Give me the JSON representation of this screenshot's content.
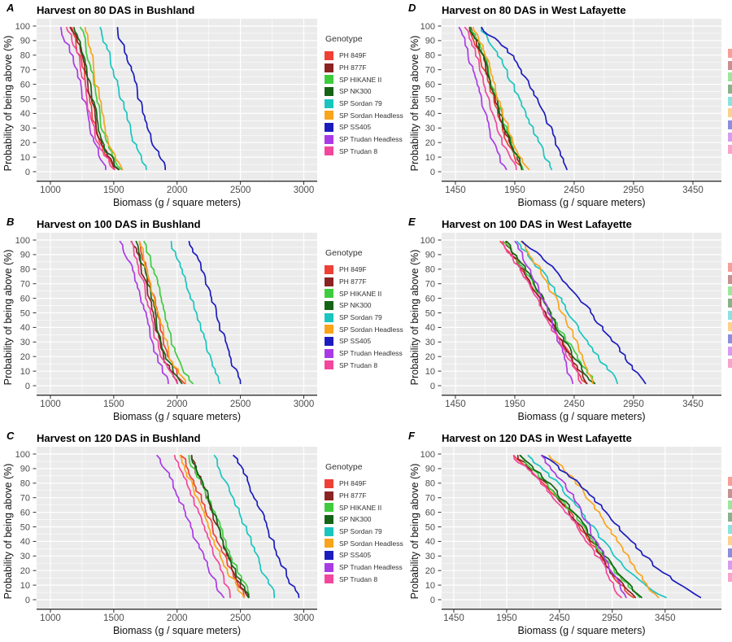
{
  "legend": {
    "title": "Genotype"
  },
  "genotypes": [
    {
      "name": "PH 849F",
      "color": "#EE4035"
    },
    {
      "name": "PH 877F",
      "color": "#8B2323"
    },
    {
      "name": "SP HIKANE II",
      "color": "#3ECC3E"
    },
    {
      "name": "SP NK300",
      "color": "#156315"
    },
    {
      "name": "SP Sordan 79",
      "color": "#19C5BF"
    },
    {
      "name": "SP Sordan Headless",
      "color": "#F9A41B"
    },
    {
      "name": "SP SS405",
      "color": "#1C1CBE"
    },
    {
      "name": "SP Trudan Headless",
      "color": "#A93BE6"
    },
    {
      "name": "SP Trudan 8",
      "color": "#F2479C"
    }
  ],
  "axes": {
    "xlabel": "Biomass (g / square meters)",
    "ylabel": "Probability of being above (%)",
    "yticks": [
      0,
      10,
      20,
      30,
      40,
      50,
      60,
      70,
      80,
      90,
      100
    ],
    "ylim": [
      0,
      100
    ]
  },
  "chart_data": [
    {
      "id": "A",
      "type": "line",
      "column": "left",
      "title": "Harvest on 80 DAS in Bushland",
      "xlabel": "Biomass (g / square meters)",
      "ylabel": "Probability of being above (%)",
      "xticks": [
        1000,
        1500,
        2000,
        2500,
        3000
      ],
      "xlim": [
        891,
        3106
      ],
      "ylim": [
        0,
        100
      ],
      "prob_levels": [
        100,
        80,
        60,
        40,
        20,
        0
      ],
      "series": [
        {
          "name": "PH 849F",
          "x_at_prob": [
            1154,
            1230,
            1280,
            1325,
            1375,
            1535
          ]
        },
        {
          "name": "PH 877F",
          "x_at_prob": [
            1169,
            1245,
            1295,
            1340,
            1390,
            1542
          ]
        },
        {
          "name": "SP HIKANE II",
          "x_at_prob": [
            1244,
            1300,
            1345,
            1385,
            1435,
            1563
          ]
        },
        {
          "name": "SP NK300",
          "x_at_prob": [
            1180,
            1255,
            1305,
            1350,
            1400,
            1548
          ]
        },
        {
          "name": "SP Sordan 79",
          "x_at_prob": [
            1383,
            1460,
            1530,
            1590,
            1660,
            1766
          ]
        },
        {
          "name": "SP Sordan Headless",
          "x_at_prob": [
            1265,
            1320,
            1360,
            1400,
            1450,
            1584
          ]
        },
        {
          "name": "SP SS405",
          "x_at_prob": [
            1511,
            1600,
            1670,
            1730,
            1800,
            1921
          ]
        },
        {
          "name": "SP Trudan Headless",
          "x_at_prob": [
            1077,
            1160,
            1230,
            1290,
            1350,
            1437
          ]
        },
        {
          "name": "SP Trudan 8",
          "x_at_prob": [
            1141,
            1215,
            1265,
            1310,
            1360,
            1520
          ]
        }
      ]
    },
    {
      "id": "D",
      "type": "line",
      "column": "right",
      "title": "Harvest on 80 DAS in West Lafayette",
      "xlabel": "Biomass (g / square meters)",
      "ylabel": "Probability of being above (%)",
      "xticks": [
        1450,
        1950,
        2450,
        2950,
        3450
      ],
      "xlim": [
        1334,
        3690
      ],
      "ylim": [
        0,
        100
      ],
      "prob_levels": [
        100,
        80,
        60,
        40,
        20,
        0
      ],
      "series": [
        {
          "name": "PH 849F",
          "x_at_prob": [
            1550,
            1660,
            1730,
            1800,
            1885,
            2010
          ]
        },
        {
          "name": "PH 877F",
          "x_at_prob": [
            1560,
            1670,
            1740,
            1810,
            1895,
            2020
          ]
        },
        {
          "name": "SP HIKANE II",
          "x_at_prob": [
            1580,
            1690,
            1760,
            1830,
            1915,
            2045
          ]
        },
        {
          "name": "SP NK300",
          "x_at_prob": [
            1570,
            1680,
            1750,
            1820,
            1905,
            2030
          ]
        },
        {
          "name": "SP Sordan 79",
          "x_at_prob": [
            1645,
            1810,
            1930,
            2040,
            2150,
            2260
          ]
        },
        {
          "name": "SP Sordan Headless",
          "x_at_prob": [
            1590,
            1700,
            1775,
            1845,
            1930,
            2065
          ]
        },
        {
          "name": "SP SS405",
          "x_at_prob": [
            1655,
            1930,
            2070,
            2190,
            2300,
            2400
          ]
        },
        {
          "name": "SP Trudan Headless",
          "x_at_prob": [
            1485,
            1555,
            1625,
            1690,
            1770,
            1875
          ]
        },
        {
          "name": "SP Trudan 8",
          "x_at_prob": [
            1540,
            1620,
            1690,
            1755,
            1840,
            1975
          ]
        }
      ]
    },
    {
      "id": "B",
      "type": "line",
      "column": "left",
      "title": "Harvest on 100 DAS in Bushland",
      "xlabel": "Biomass (g / square meters)",
      "ylabel": "Probability of being above (%)",
      "xticks": [
        1000,
        1500,
        2000,
        2500,
        3000
      ],
      "xlim": [
        891,
        3106
      ],
      "ylim": [
        0,
        100
      ],
      "prob_levels": [
        100,
        80,
        60,
        40,
        20,
        0
      ],
      "series": [
        {
          "name": "PH 849F",
          "x_at_prob": [
            1683,
            1755,
            1810,
            1860,
            1925,
            2057
          ]
        },
        {
          "name": "PH 877F",
          "x_at_prob": [
            1651,
            1720,
            1775,
            1825,
            1890,
            2018
          ]
        },
        {
          "name": "SP HIKANE II",
          "x_at_prob": [
            1736,
            1810,
            1865,
            1920,
            1985,
            2125
          ]
        },
        {
          "name": "SP NK300",
          "x_at_prob": [
            1672,
            1740,
            1795,
            1845,
            1910,
            2040
          ]
        },
        {
          "name": "SP Sordan 79",
          "x_at_prob": [
            1944,
            2030,
            2110,
            2180,
            2250,
            2336
          ]
        },
        {
          "name": "SP Sordan Headless",
          "x_at_prob": [
            1693,
            1765,
            1820,
            1875,
            1945,
            2078
          ]
        },
        {
          "name": "SP SS405",
          "x_at_prob": [
            2100,
            2190,
            2270,
            2340,
            2415,
            2507
          ]
        },
        {
          "name": "SP Trudan Headless",
          "x_at_prob": [
            1544,
            1640,
            1710,
            1770,
            1840,
            1939
          ]
        },
        {
          "name": "SP Trudan 8",
          "x_at_prob": [
            1629,
            1700,
            1755,
            1805,
            1870,
            2003
          ]
        }
      ]
    },
    {
      "id": "E",
      "type": "line",
      "column": "right",
      "title": "Harvest on 100 DAS in West Lafayette",
      "xlabel": "Biomass (g / square meters)",
      "ylabel": "Probability of being above (%)",
      "xticks": [
        1450,
        1950,
        2450,
        2950,
        3450
      ],
      "xlim": [
        1334,
        3690
      ],
      "ylim": [
        0,
        100
      ],
      "prob_levels": [
        100,
        80,
        60,
        40,
        20,
        0
      ],
      "series": [
        {
          "name": "PH 849F",
          "x_at_prob": [
            1830,
            2010,
            2150,
            2280,
            2420,
            2560
          ]
        },
        {
          "name": "PH 877F",
          "x_at_prob": [
            1850,
            2010,
            2150,
            2280,
            2420,
            2570
          ]
        },
        {
          "name": "SP HIKANE II",
          "x_at_prob": [
            1855,
            2030,
            2180,
            2320,
            2470,
            2640
          ]
        },
        {
          "name": "SP NK300",
          "x_at_prob": [
            1870,
            2040,
            2180,
            2310,
            2440,
            2620
          ]
        },
        {
          "name": "SP Sordan 79",
          "x_at_prob": [
            1965,
            2160,
            2330,
            2490,
            2650,
            2835
          ]
        },
        {
          "name": "SP Sordan Headless",
          "x_at_prob": [
            2000,
            2160,
            2290,
            2410,
            2510,
            2605
          ]
        },
        {
          "name": "SP SS405",
          "x_at_prob": [
            2000,
            2280,
            2500,
            2690,
            2870,
            3050
          ]
        },
        {
          "name": "SP Trudan Headless",
          "x_at_prob": [
            1940,
            2070,
            2180,
            2280,
            2360,
            2430
          ]
        },
        {
          "name": "SP Trudan 8",
          "x_at_prob": [
            1840,
            1990,
            2130,
            2260,
            2390,
            2525
          ]
        }
      ]
    },
    {
      "id": "C",
      "type": "line",
      "column": "left",
      "title": "Harvest on 120 DAS in Bushland",
      "xlabel": "Biomass (g / square meters)",
      "ylabel": "Probability of being above (%)",
      "xticks": [
        1000,
        1500,
        2000,
        2500,
        3000
      ],
      "xlim": [
        891,
        3106
      ],
      "ylim": [
        0,
        100
      ],
      "prob_levels": [
        100,
        80,
        60,
        40,
        20,
        0
      ],
      "series": [
        {
          "name": "PH 849F",
          "x_at_prob": [
            2035,
            2140,
            2230,
            2320,
            2420,
            2549
          ]
        },
        {
          "name": "PH 877F",
          "x_at_prob": [
            2100,
            2190,
            2270,
            2350,
            2440,
            2560
          ]
        },
        {
          "name": "SP HIKANE II",
          "x_at_prob": [
            2078,
            2190,
            2290,
            2380,
            2470,
            2592
          ]
        },
        {
          "name": "SP NK300",
          "x_at_prob": [
            2110,
            2200,
            2285,
            2365,
            2455,
            2571
          ]
        },
        {
          "name": "SP Sordan 79",
          "x_at_prob": [
            2281,
            2390,
            2490,
            2580,
            2670,
            2783
          ]
        },
        {
          "name": "SP Sordan Headless",
          "x_at_prob": [
            2003,
            2110,
            2200,
            2290,
            2400,
            2539
          ]
        },
        {
          "name": "SP SS405",
          "x_at_prob": [
            2452,
            2560,
            2660,
            2750,
            2850,
            2965
          ]
        },
        {
          "name": "SP Trudan Headless",
          "x_at_prob": [
            1854,
            1960,
            2060,
            2150,
            2250,
            2367
          ]
        },
        {
          "name": "SP Trudan 8",
          "x_at_prob": [
            1971,
            2070,
            2160,
            2250,
            2340,
            2432
          ]
        }
      ]
    },
    {
      "id": "F",
      "type": "line",
      "column": "right",
      "title": "Harvest on 120 DAS in West Lafayette",
      "xlabel": "Biomass (g / square meters)",
      "ylabel": "Probability of being above (%)",
      "xticks": [
        1450,
        1950,
        2450,
        2950,
        3450
      ],
      "xlim": [
        1335,
        3983
      ],
      "ylim": [
        0,
        100
      ],
      "prob_levels": [
        100,
        80,
        60,
        40,
        20,
        0
      ],
      "series": [
        {
          "name": "PH 849F",
          "x_at_prob": [
            2015,
            2300,
            2540,
            2740,
            2920,
            3160
          ]
        },
        {
          "name": "PH 877F",
          "x_at_prob": [
            2030,
            2310,
            2550,
            2750,
            2930,
            3185
          ]
        },
        {
          "name": "SP HIKANE II",
          "x_at_prob": [
            2055,
            2330,
            2570,
            2780,
            2970,
            3225
          ]
        },
        {
          "name": "SP NK300",
          "x_at_prob": [
            2080,
            2350,
            2580,
            2790,
            2980,
            3235
          ]
        },
        {
          "name": "SP Sordan 79",
          "x_at_prob": [
            2130,
            2430,
            2660,
            2860,
            3080,
            3470
          ]
        },
        {
          "name": "SP Sordan Headless",
          "x_at_prob": [
            2350,
            2620,
            2820,
            3000,
            3180,
            3390
          ]
        },
        {
          "name": "SP SS405",
          "x_at_prob": [
            2270,
            2640,
            2900,
            3130,
            3400,
            3820
          ]
        },
        {
          "name": "SP Trudan Headless",
          "x_at_prob": [
            2260,
            2500,
            2660,
            2800,
            2940,
            3095
          ]
        },
        {
          "name": "SP Trudan 8",
          "x_at_prob": [
            1990,
            2280,
            2520,
            2720,
            2890,
            3030
          ]
        }
      ]
    }
  ]
}
